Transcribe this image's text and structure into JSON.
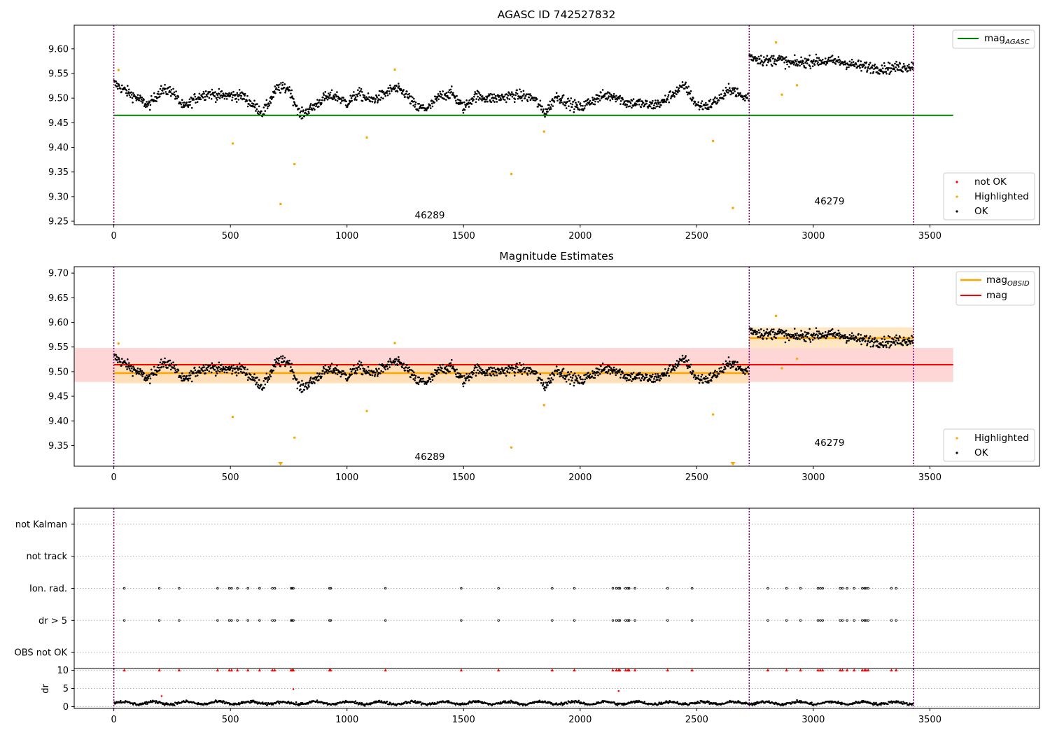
{
  "colors": {
    "ok": "#000000",
    "highlighted": "#ffa500",
    "not_ok": "#ff0000",
    "mag_agasc": "#008000",
    "mag": "#ff0000",
    "mag_obsid": "#ffa500",
    "obsid_line": "#800080",
    "band_mag": "#ffcccc",
    "band_obsid": "#ffe0b3"
  },
  "obsids": {
    "first": "46289",
    "second": "46279"
  },
  "chart_data": [
    {
      "type": "scatter",
      "title": "AGASC ID 742527832",
      "xlim": [
        -170,
        3970
      ],
      "ylim": [
        9.243,
        9.648
      ],
      "xticks": [
        "0",
        "500",
        "1000",
        "1500",
        "2000",
        "2500",
        "3000",
        "3500"
      ],
      "yticks": [
        "9.25",
        "9.30",
        "9.35",
        "9.40",
        "9.45",
        "9.50",
        "9.55",
        "9.60"
      ],
      "obsid_boundaries": [
        0,
        2725,
        3430
      ],
      "hlines": [
        {
          "name": "mag",
          "subscript": "AGASC",
          "y": 9.465,
          "x_range": [
            0,
            3600
          ]
        }
      ],
      "legend_lines": [
        {
          "name": "mag",
          "subscript": "AGASC"
        }
      ],
      "legend_points": [
        "not OK",
        "Highlighted",
        "OK"
      ],
      "highlighted": [
        [
          20,
          9.557
        ],
        [
          510,
          9.408
        ],
        [
          715,
          9.285
        ],
        [
          775,
          9.366
        ],
        [
          1085,
          9.42
        ],
        [
          1205,
          9.558
        ],
        [
          1705,
          9.346
        ],
        [
          1845,
          9.432
        ],
        [
          2570,
          9.413
        ],
        [
          2655,
          9.277
        ],
        [
          2840,
          9.613
        ],
        [
          2865,
          9.507
        ],
        [
          2930,
          9.526
        ]
      ],
      "ok_segments": [
        {
          "x": [
            0,
            2725
          ],
          "keys": [
            [
              0,
              9.53
            ],
            [
              100,
              9.5
            ],
            [
              150,
              9.485
            ],
            [
              200,
              9.515
            ],
            [
              250,
              9.515
            ],
            [
              300,
              9.48
            ],
            [
              350,
              9.5
            ],
            [
              400,
              9.51
            ],
            [
              450,
              9.505
            ],
            [
              500,
              9.505
            ],
            [
              550,
              9.505
            ],
            [
              600,
              9.485
            ],
            [
              640,
              9.47
            ],
            [
              700,
              9.52
            ],
            [
              750,
              9.52
            ],
            [
              800,
              9.465
            ],
            [
              850,
              9.48
            ],
            [
              900,
              9.5
            ],
            [
              950,
              9.505
            ],
            [
              1000,
              9.49
            ],
            [
              1050,
              9.51
            ],
            [
              1100,
              9.495
            ],
            [
              1150,
              9.505
            ],
            [
              1200,
              9.52
            ],
            [
              1250,
              9.51
            ],
            [
              1300,
              9.48
            ],
            [
              1350,
              9.48
            ],
            [
              1400,
              9.505
            ],
            [
              1450,
              9.51
            ],
            [
              1500,
              9.48
            ],
            [
              1550,
              9.505
            ],
            [
              1600,
              9.5
            ],
            [
              1650,
              9.5
            ],
            [
              1700,
              9.505
            ],
            [
              1750,
              9.505
            ],
            [
              1800,
              9.5
            ],
            [
              1850,
              9.47
            ],
            [
              1900,
              9.505
            ],
            [
              1950,
              9.49
            ],
            [
              2000,
              9.48
            ],
            [
              2050,
              9.495
            ],
            [
              2100,
              9.505
            ],
            [
              2150,
              9.505
            ],
            [
              2200,
              9.49
            ],
            [
              2250,
              9.49
            ],
            [
              2300,
              9.485
            ],
            [
              2350,
              9.49
            ],
            [
              2400,
              9.51
            ],
            [
              2450,
              9.525
            ],
            [
              2500,
              9.485
            ],
            [
              2550,
              9.485
            ],
            [
              2600,
              9.5
            ],
            [
              2650,
              9.52
            ],
            [
              2700,
              9.5
            ],
            [
              2725,
              9.505
            ]
          ]
        },
        {
          "x": [
            2725,
            3430
          ],
          "keys": [
            [
              2725,
              9.585
            ],
            [
              2800,
              9.575
            ],
            [
              2850,
              9.58
            ],
            [
              2900,
              9.57
            ],
            [
              3000,
              9.575
            ],
            [
              3100,
              9.575
            ],
            [
              3200,
              9.565
            ],
            [
              3300,
              9.56
            ],
            [
              3430,
              9.565
            ]
          ]
        }
      ]
    },
    {
      "type": "scatter",
      "title": "Magnitude Estimates",
      "xlim": [
        -170,
        3970
      ],
      "ylim": [
        9.308,
        9.713
      ],
      "xticks": [
        "0",
        "500",
        "1000",
        "1500",
        "2000",
        "2500",
        "3000",
        "3500"
      ],
      "yticks": [
        "9.35",
        "9.40",
        "9.45",
        "9.50",
        "9.55",
        "9.60",
        "9.65",
        "9.70"
      ],
      "obsid_boundaries": [
        0,
        2725,
        3430
      ],
      "bands": [
        {
          "x_range": [
            -170,
            3600
          ],
          "y_range": [
            9.479,
            9.548
          ],
          "color": "mag"
        },
        {
          "x_range": [
            0,
            2725
          ],
          "y_range": [
            9.476,
            9.518
          ],
          "color": "obsid"
        },
        {
          "x_range": [
            2725,
            3430
          ],
          "y_range": [
            9.548,
            9.59
          ],
          "color": "obsid"
        }
      ],
      "hlines": [
        {
          "name": "mag",
          "subscript": "OBSID",
          "y": 9.497,
          "x_range": [
            0,
            2725
          ],
          "color": "mag_obsid"
        },
        {
          "name": "mag",
          "subscript": "OBSID",
          "y": 9.568,
          "x_range": [
            2725,
            3430
          ],
          "color": "mag_obsid"
        },
        {
          "name": "mag",
          "subscript": "",
          "y": 9.514,
          "x_range": [
            0,
            3600
          ],
          "color": "mag"
        }
      ],
      "legend_lines": [
        {
          "name": "mag",
          "subscript": "OBSID"
        },
        {
          "name": "mag",
          "subscript": ""
        }
      ],
      "legend_points": [
        "Highlighted",
        "OK"
      ],
      "out_of_range_markers": [
        715,
        2655
      ]
    },
    {
      "type": "scatter",
      "categories": [
        "OBS not OK",
        "dr > 5",
        "Ion. rad.",
        "not track",
        "not Kalman"
      ],
      "xlim": [
        -170,
        3970
      ],
      "ylim": [
        -0.5,
        4.5
      ],
      "obsid_boundaries": [
        0,
        2725,
        3430
      ],
      "flag_x": [
        45,
        195,
        280,
        445,
        495,
        505,
        530,
        575,
        625,
        680,
        690,
        760,
        765,
        770,
        925,
        930,
        1165,
        1490,
        1650,
        1880,
        1975,
        2140,
        2155,
        2165,
        2170,
        2195,
        2205,
        2210,
        2235,
        2375,
        2480,
        2805,
        2885,
        2945,
        3020,
        3030,
        3040,
        3115,
        3125,
        3145,
        3175,
        3210,
        3220,
        3225,
        3235,
        3335,
        3355
      ]
    },
    {
      "type": "scatter",
      "ylabel": "dr",
      "xlim": [
        -170,
        3970
      ],
      "ylim": [
        -0.5,
        10.5
      ],
      "xticks": [
        "0",
        "500",
        "1000",
        "1500",
        "2000",
        "2500",
        "3000",
        "3500"
      ],
      "yticks": [
        "0",
        "5",
        "10"
      ],
      "obsid_boundaries": [
        0,
        2725,
        3430
      ],
      "outliers": [
        [
          205,
          2.9
        ],
        [
          770,
          4.8
        ],
        [
          2165,
          4.3
        ]
      ]
    }
  ]
}
